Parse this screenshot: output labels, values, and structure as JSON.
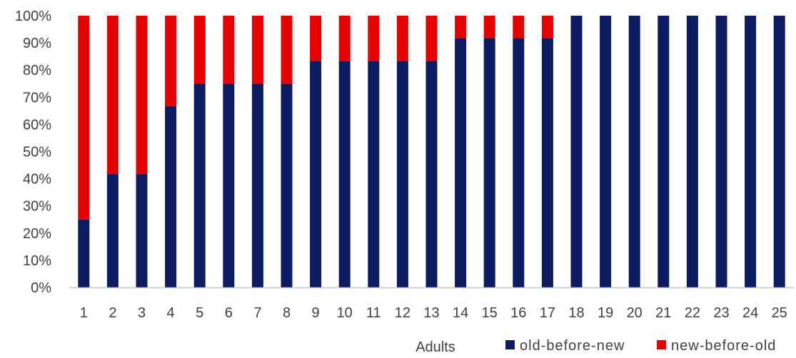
{
  "chart_data": {
    "type": "bar",
    "stacked": true,
    "categories": [
      "1",
      "2",
      "3",
      "4",
      "5",
      "6",
      "7",
      "8",
      "9",
      "10",
      "11",
      "12",
      "13",
      "14",
      "15",
      "16",
      "17",
      "18",
      "19",
      "20",
      "21",
      "22",
      "23",
      "24",
      "25"
    ],
    "series": [
      {
        "name": "old-before-new",
        "color": "#0d1b61",
        "values": [
          25,
          41.7,
          41.7,
          66.7,
          75,
          75,
          75,
          75,
          83.3,
          83.3,
          83.3,
          83.3,
          83.3,
          91.7,
          91.7,
          91.7,
          91.7,
          100,
          100,
          100,
          100,
          100,
          100,
          100,
          100
        ]
      },
      {
        "name": "new-before-old",
        "color": "#e60000",
        "values": [
          75,
          58.3,
          58.3,
          33.3,
          25,
          25,
          25,
          25,
          16.7,
          16.7,
          16.7,
          16.7,
          16.7,
          8.3,
          8.3,
          8.3,
          8.3,
          0,
          0,
          0,
          0,
          0,
          0,
          0,
          0
        ]
      }
    ],
    "y_ticks": [
      "0%",
      "10%",
      "20%",
      "30%",
      "40%",
      "50%",
      "60%",
      "70%",
      "80%",
      "90%",
      "100%"
    ],
    "ylim": [
      0,
      100
    ],
    "xlabel": "Adults",
    "ylabel": "",
    "title": "",
    "grid": false,
    "legend_position": "bottom-right"
  }
}
